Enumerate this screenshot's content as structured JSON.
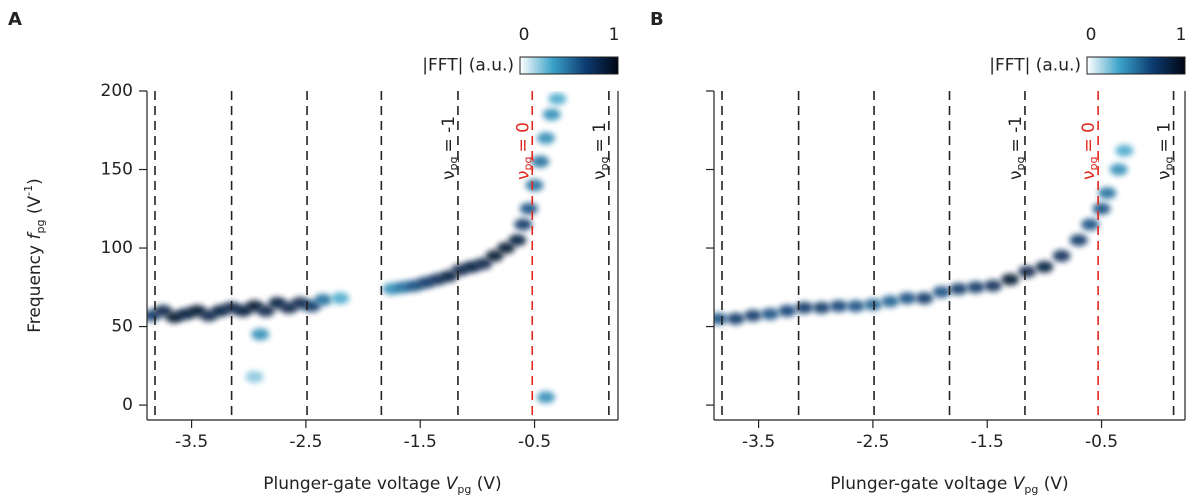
{
  "chart_data": [
    {
      "type": "heatmap",
      "panel": "A",
      "xlabel": {
        "text": "Plunger-gate voltage ",
        "var": "V",
        "sub": "pg",
        "unit": " (V)"
      },
      "ylabel": {
        "text": "Frequency ",
        "var": "f",
        "sub": "pg",
        "unit": " (V",
        "sup": "-1",
        "close": ")"
      },
      "xlim": [
        -3.89,
        0.23
      ],
      "ylim": [
        -9.5,
        200
      ],
      "xticks": [
        -3.5,
        -2.5,
        -1.5,
        -0.5
      ],
      "yticks": [
        0,
        50,
        100,
        150,
        200
      ],
      "show_ytick_labels": true,
      "colorbar": {
        "label": "|FFT| (a.u.)",
        "clim": [
          0,
          1
        ],
        "ticks": [
          0,
          1
        ],
        "colors": [
          "#ffffff",
          "#3aa2c8",
          "#0d3c72",
          "#000612"
        ]
      },
      "vlines": [
        {
          "x": -3.82,
          "color": "#222222"
        },
        {
          "x": -3.15,
          "color": "#222222"
        },
        {
          "x": -2.49,
          "color": "#222222"
        },
        {
          "x": -1.84,
          "color": "#222222"
        },
        {
          "x": -1.17,
          "color": "#222222"
        },
        {
          "x": -0.52,
          "color": "#e0281e"
        },
        {
          "x": 0.15,
          "color": "#222222"
        }
      ],
      "annotations": [
        {
          "x": -1.17,
          "label": "ν",
          "sub": "pg",
          "rest": "= -1",
          "color": "#222222"
        },
        {
          "x": -0.52,
          "label": "ν",
          "sub": "pg",
          "rest": "= 0",
          "color": "#e0281e"
        },
        {
          "x": 0.15,
          "label": "ν",
          "sub": "pg",
          "rest": "= 1",
          "color": "#222222"
        }
      ],
      "x": [
        -3.85,
        -3.75,
        -3.65,
        -3.55,
        -3.45,
        -3.35,
        -3.25,
        -3.15,
        -3.05,
        -2.95,
        -2.85,
        -2.75,
        -2.65,
        -2.55,
        -2.45,
        -2.35,
        -2.2,
        -1.75,
        -1.65,
        -1.55,
        -1.45,
        -1.35,
        -1.25,
        -1.15,
        -1.05,
        -0.95,
        -0.85,
        -0.75,
        -0.65,
        -0.6,
        -0.55,
        -0.5,
        -0.45,
        -0.4,
        -0.35,
        -0.3,
        -0.4,
        -2.95,
        -2.9
      ],
      "values": [
        57,
        60,
        56,
        58,
        60,
        57,
        60,
        62,
        60,
        63,
        60,
        65,
        62,
        65,
        63,
        67,
        68,
        74,
        75,
        76,
        78,
        80,
        82,
        86,
        88,
        90,
        95,
        100,
        105,
        115,
        125,
        140,
        155,
        170,
        185,
        195,
        5,
        18,
        45
      ],
      "intensity": [
        0.7,
        0.8,
        0.9,
        0.85,
        0.9,
        0.8,
        0.85,
        0.8,
        0.85,
        0.9,
        0.8,
        0.85,
        0.8,
        0.8,
        0.7,
        0.5,
        0.3,
        0.4,
        0.5,
        0.6,
        0.7,
        0.75,
        0.85,
        0.8,
        0.85,
        0.8,
        0.9,
        0.9,
        0.85,
        0.7,
        0.6,
        0.5,
        0.5,
        0.4,
        0.4,
        0.3,
        0.4,
        0.2,
        0.4
      ]
    },
    {
      "type": "heatmap",
      "panel": "B",
      "xlabel": {
        "text": "Plunger-gate voltage ",
        "var": "V",
        "sub": "pg",
        "unit": " (V)"
      },
      "xlim": [
        -3.89,
        0.23
      ],
      "ylim": [
        -9.5,
        200
      ],
      "xticks": [
        -3.5,
        -2.5,
        -1.5,
        -0.5
      ],
      "yticks": [
        0,
        50,
        100,
        150,
        200
      ],
      "show_ytick_labels": false,
      "colorbar": {
        "label": "|FFT| (a.u.)",
        "clim": [
          0,
          1
        ],
        "ticks": [
          0,
          1
        ],
        "colors": [
          "#ffffff",
          "#3aa2c8",
          "#0d3c72",
          "#000612"
        ]
      },
      "vlines": [
        {
          "x": -3.82,
          "color": "#222222"
        },
        {
          "x": -3.15,
          "color": "#222222"
        },
        {
          "x": -2.49,
          "color": "#222222"
        },
        {
          "x": -1.83,
          "color": "#222222"
        },
        {
          "x": -1.17,
          "color": "#222222"
        },
        {
          "x": -0.53,
          "color": "#e0281e"
        },
        {
          "x": 0.13,
          "color": "#222222"
        }
      ],
      "annotations": [
        {
          "x": -1.17,
          "label": "ν",
          "sub": "pg",
          "rest": "= -1",
          "color": "#222222"
        },
        {
          "x": -0.53,
          "label": "ν",
          "sub": "pg",
          "rest": "= 0",
          "color": "#e0281e"
        },
        {
          "x": 0.13,
          "label": "ν",
          "sub": "pg",
          "rest": "= 1",
          "color": "#222222"
        }
      ],
      "x": [
        -3.85,
        -3.7,
        -3.55,
        -3.4,
        -3.25,
        -3.1,
        -2.95,
        -2.8,
        -2.65,
        -2.5,
        -2.35,
        -2.2,
        -2.05,
        -1.9,
        -1.75,
        -1.6,
        -1.45,
        -1.3,
        -1.15,
        -1.0,
        -0.85,
        -0.7,
        -0.6,
        -0.5,
        -0.45,
        -0.35,
        -0.3
      ],
      "values": [
        55,
        55,
        57,
        58,
        60,
        62,
        62,
        63,
        63,
        64,
        66,
        68,
        68,
        72,
        74,
        75,
        76,
        80,
        85,
        88,
        95,
        105,
        115,
        125,
        135,
        150,
        162
      ],
      "intensity": [
        0.6,
        0.7,
        0.7,
        0.6,
        0.65,
        0.7,
        0.7,
        0.65,
        0.6,
        0.55,
        0.55,
        0.6,
        0.7,
        0.6,
        0.7,
        0.7,
        0.75,
        0.9,
        0.8,
        0.85,
        0.75,
        0.7,
        0.6,
        0.6,
        0.5,
        0.4,
        0.3
      ]
    }
  ]
}
